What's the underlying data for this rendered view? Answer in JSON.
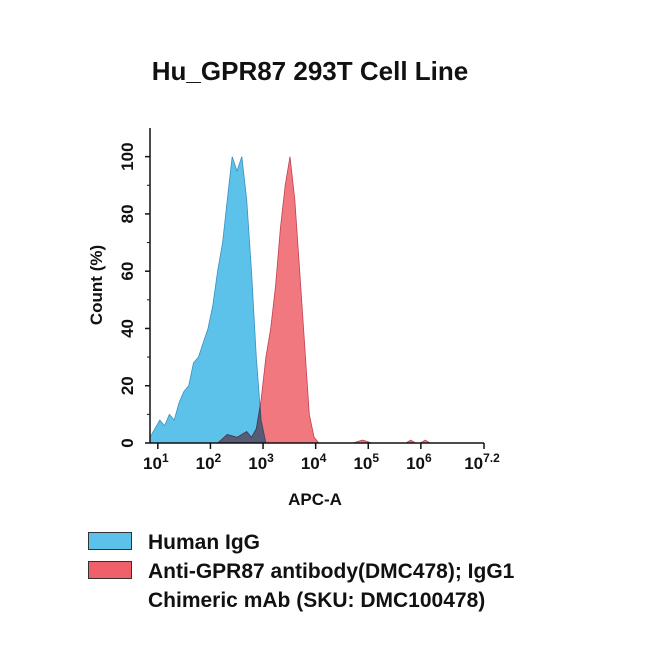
{
  "chart_data": {
    "type": "area",
    "title": "Hu_GPR87 293T Cell Line",
    "x_label": "APC-A",
    "y_label": "Count  (%)",
    "xlog": true,
    "xlim": [
      7.1,
      15848932
    ],
    "xticks": [
      {
        "value": 10,
        "label": "10",
        "exponent": "1"
      },
      {
        "value": 100,
        "label": "10",
        "exponent": "2"
      },
      {
        "value": 1000,
        "label": "10",
        "exponent": "3"
      },
      {
        "value": 10000,
        "label": "10",
        "exponent": "4"
      },
      {
        "value": 100000,
        "label": "10",
        "exponent": "5"
      },
      {
        "value": 1000000,
        "label": "10",
        "exponent": "6"
      },
      {
        "value": 15848932,
        "label": "10",
        "exponent": "7.2"
      }
    ],
    "ylim": [
      0,
      110
    ],
    "yticks": [
      0,
      20,
      40,
      60,
      80,
      100
    ],
    "series": [
      {
        "name": "Human IgG",
        "color": "#5cc2ea",
        "x": [
          7.1,
          8.8,
          10.9,
          13.4,
          16.6,
          20.5,
          25.3,
          31.3,
          38.6,
          47.7,
          59,
          72.8,
          89.9,
          111,
          137,
          170,
          209,
          259,
          320,
          395,
          488,
          603,
          744,
          919,
          1135
        ],
        "values": [
          2,
          5,
          8,
          6,
          10,
          8,
          14,
          18,
          20,
          28,
          30,
          35,
          40,
          48,
          60,
          70,
          85,
          100,
          95,
          100,
          85,
          60,
          30,
          8,
          0
        ]
      },
      {
        "name": "Anti-GPR87 antibody(DMC478); IgG1 Chimeric mAb (SKU: DMC100478)",
        "color": "#f0606a",
        "x": [
          137,
          209,
          320,
          488,
          603,
          744,
          919,
          1135,
          1400,
          1730,
          2140,
          2640,
          3260,
          4020,
          4970,
          6130,
          7570,
          9350,
          11550,
          50800,
          77600,
          118000,
          520000,
          641000,
          792000,
          979000,
          1210000,
          1490000
        ],
        "values": [
          0,
          3,
          2,
          4,
          2,
          5,
          15,
          30,
          40,
          55,
          75,
          90,
          100,
          85,
          60,
          35,
          10,
          2,
          0,
          0,
          1,
          0,
          0,
          1,
          0,
          0,
          1,
          0
        ]
      }
    ]
  }
}
